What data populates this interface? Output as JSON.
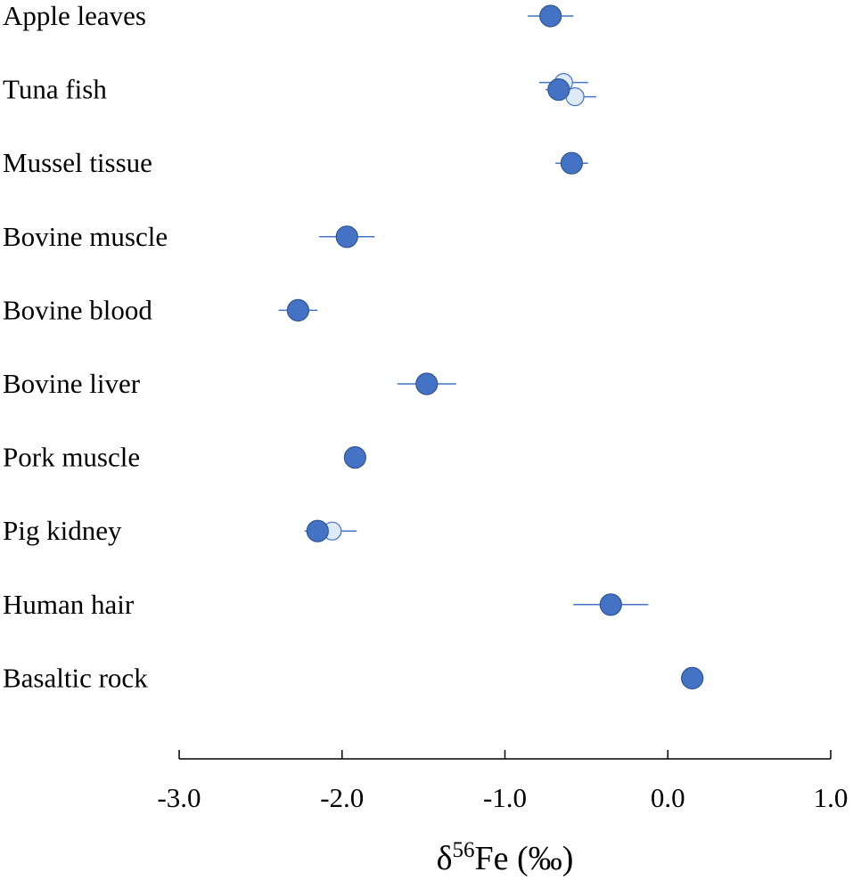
{
  "chart_data": {
    "type": "scatter",
    "orientation": "horizontal-dot-plot",
    "categories": [
      "Apple leaves",
      "Tuna fish",
      "Mussel tissue",
      "Bovine muscle",
      "Bovine blood",
      "Bovine liver",
      "Pork muscle",
      "Pig kidney",
      "Human hair",
      "Basaltic rock"
    ],
    "xlabel_parts": {
      "symbol": "δ",
      "superscript": "56",
      "element": "Fe",
      "unit": " (‰)"
    },
    "xlim": [
      -3.0,
      1.0
    ],
    "xticks": [
      -3.0,
      -2.0,
      -1.0,
      0.0,
      1.0
    ],
    "xtick_labels": [
      "-3.0",
      "-2.0",
      "-1.0",
      "0.0",
      "1.0"
    ],
    "grid": false,
    "colors": {
      "series1": "#4472c4",
      "series1_edge": "#2f5597",
      "series2_fill": "#deebf7",
      "series2_edge": "#4472c4"
    },
    "series": [
      {
        "name": "series-1",
        "style": "filled",
        "points": [
          {
            "category": "Apple leaves",
            "value": -0.72,
            "err": 0.14
          },
          {
            "category": "Tuna fish",
            "value": -0.67,
            "err": 0.08
          },
          {
            "category": "Mussel tissue",
            "value": -0.59,
            "err": 0.1
          },
          {
            "category": "Bovine muscle",
            "value": -1.97,
            "err": 0.17
          },
          {
            "category": "Bovine blood",
            "value": -2.27,
            "err": 0.12
          },
          {
            "category": "Bovine liver",
            "value": -1.48,
            "err": 0.18
          },
          {
            "category": "Pork muscle",
            "value": -1.92,
            "err": 0.03
          },
          {
            "category": "Pig kidney",
            "value": -2.15,
            "err": 0.08
          },
          {
            "category": "Human hair",
            "value": -0.35,
            "err": 0.23
          },
          {
            "category": "Basaltic rock",
            "value": 0.15,
            "err": 0.07
          }
        ]
      },
      {
        "name": "series-2",
        "style": "open",
        "points": [
          {
            "category": "Tuna fish",
            "value": -0.64,
            "err": 0.15,
            "offset": -1
          },
          {
            "category": "Tuna fish",
            "value": -0.57,
            "err": 0.13,
            "offset": 1
          },
          {
            "category": "Pig kidney",
            "value": -2.06,
            "err": 0.15
          }
        ]
      }
    ]
  }
}
